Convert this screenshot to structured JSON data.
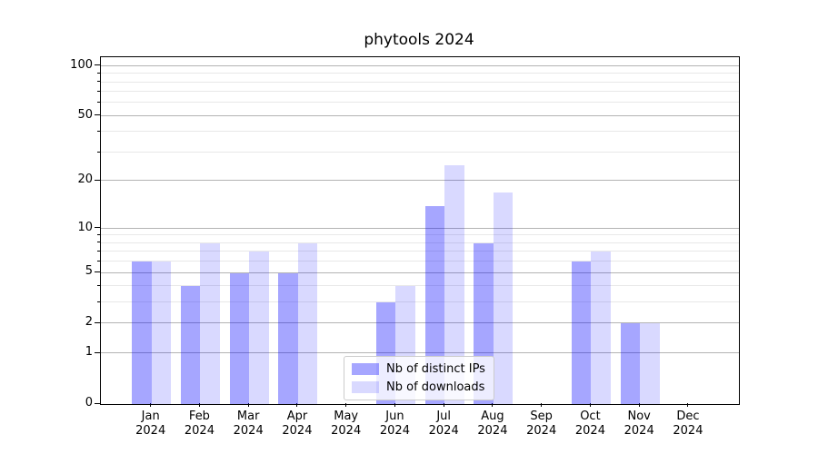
{
  "title": "phytools 2024",
  "chart_data": {
    "type": "bar",
    "title": "phytools 2024",
    "categories": [
      "Jan",
      "Feb",
      "Mar",
      "Apr",
      "May",
      "Jun",
      "Jul",
      "Aug",
      "Sep",
      "Oct",
      "Nov",
      "Dec"
    ],
    "category_year": "2024",
    "series": [
      {
        "name": "Nb of distinct IPs",
        "color": "rgba(0,0,255,0.35)",
        "values": [
          6,
          4,
          5,
          5,
          0,
          3,
          14,
          8,
          0,
          6,
          2,
          0
        ]
      },
      {
        "name": "Nb of downloads",
        "color": "rgba(0,0,255,0.15)",
        "values": [
          6,
          8,
          7,
          8,
          0,
          4,
          25,
          17,
          0,
          7,
          2,
          0
        ]
      }
    ],
    "yaxis": {
      "scale": "log1p",
      "ticks": [
        0,
        1,
        2,
        5,
        10,
        20,
        50,
        100
      ],
      "minor_gridlines": [
        3,
        4,
        6,
        7,
        8,
        9,
        30,
        40,
        60,
        70,
        80,
        90
      ],
      "max": 113
    },
    "xlabel": "",
    "ylabel": "",
    "grid": true,
    "legend": {
      "position": "bottom-center",
      "entries": [
        "Nb of distinct IPs",
        "Nb of downloads"
      ]
    }
  },
  "colors": {
    "bar_ips": "rgba(0,0,255,0.35)",
    "bar_downloads": "rgba(0,0,255,0.15)",
    "major_grid": "#b3b3b3",
    "minor_grid": "#e8e8e8",
    "spine": "#000000",
    "background": "#ffffff",
    "legend_border": "#cccccc"
  }
}
